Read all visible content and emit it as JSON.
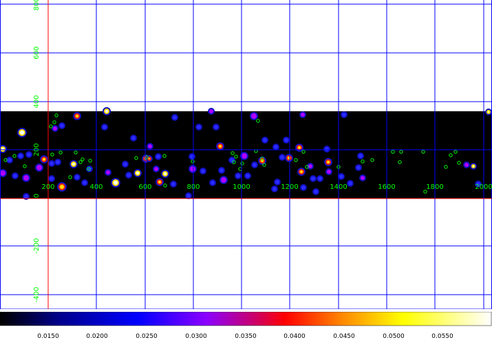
{
  "x_axis": {
    "ticks": [
      "200",
      "400",
      "600",
      "800",
      "1000",
      "1200",
      "1400",
      "1600",
      "1800",
      "2000"
    ],
    "color": "#00ff00"
  },
  "y_axis": {
    "ticks": [
      "800",
      "600",
      "400",
      "200",
      "0",
      "-200",
      "-400"
    ],
    "color": "#00ff00"
  },
  "grid": {
    "color": "#0000ff",
    "axis_color": "#ff0000"
  },
  "image": {
    "background": "#000000"
  },
  "colorbar": {
    "labels": [
      "0.0150",
      "0.0200",
      "0.0250",
      "0.0300",
      "0.0350",
      "0.0400",
      "0.0450",
      "0.0500",
      "0.0550"
    ],
    "colors": [
      "#000000",
      "#00008b",
      "#0000ff",
      "#8b00ff",
      "#cc0066",
      "#ff0000",
      "#ff8c00",
      "#ffff00",
      "#ffffff"
    ]
  },
  "sources": {
    "colors": {
      "faint": "#2a2aff",
      "mid": "#b000ff",
      "bright": "#ff2a00",
      "peak": "#ffe000",
      "region": "#00ff00"
    }
  }
}
